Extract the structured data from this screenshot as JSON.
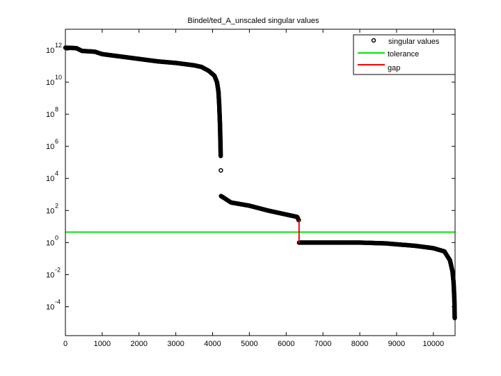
{
  "chart_data": {
    "type": "scatter",
    "title": "Bindel/ted_A_unscaled singular values",
    "xlabel": "",
    "ylabel": "",
    "yscale": "log",
    "xlim": [
      0,
      10590
    ],
    "ylim_exponent": [
      -5.8,
      13.3
    ],
    "xticks": [
      0,
      1000,
      2000,
      3000,
      4000,
      5000,
      6000,
      7000,
      8000,
      9000,
      10000
    ],
    "yticks": [
      {
        "base": "10",
        "exp": "12",
        "value": 1000000000000.0
      },
      {
        "base": "10",
        "exp": "10",
        "value": 10000000000.0
      },
      {
        "base": "10",
        "exp": "8",
        "value": 100000000.0
      },
      {
        "base": "10",
        "exp": "6",
        "value": 1000000.0
      },
      {
        "base": "10",
        "exp": "4",
        "value": 10000.0
      },
      {
        "base": "10",
        "exp": "2",
        "value": 100.0
      },
      {
        "base": "10",
        "exp": "0",
        "value": 1
      },
      {
        "base": "10",
        "exp": "-2",
        "value": 0.01
      },
      {
        "base": "10",
        "exp": "-4",
        "value": 0.0001
      }
    ],
    "grid": false,
    "legend_position": "upper right",
    "legend": [
      {
        "label": "singular values",
        "marker": "o",
        "color": "#000000"
      },
      {
        "label": "tolerance",
        "line": true,
        "color": "#00e600"
      },
      {
        "label": "gap",
        "line": true,
        "color": "#ff0000"
      }
    ],
    "series": [
      {
        "name": "singular values",
        "color": "#000000",
        "points_log10": [
          [
            0,
            12.15
          ],
          [
            300,
            12.12
          ],
          [
            450,
            11.95
          ],
          [
            800,
            11.9
          ],
          [
            1000,
            11.75
          ],
          [
            1500,
            11.6
          ],
          [
            2000,
            11.45
          ],
          [
            2500,
            11.3
          ],
          [
            3000,
            11.2
          ],
          [
            3500,
            11.05
          ],
          [
            3700,
            10.95
          ],
          [
            3900,
            10.7
          ],
          [
            4050,
            10.4
          ],
          [
            4120,
            10.0
          ],
          [
            4160,
            9.4
          ],
          [
            4180,
            8.6
          ],
          [
            4190,
            8.0
          ],
          [
            4195,
            7.7
          ],
          [
            4200,
            7.4
          ],
          [
            4205,
            7.0
          ],
          [
            4210,
            6.5
          ],
          [
            4215,
            6.0
          ],
          [
            4220,
            5.4
          ],
          [
            4225,
            4.5
          ],
          [
            4230,
            2.9
          ],
          [
            4300,
            2.8
          ],
          [
            4500,
            2.5
          ],
          [
            5000,
            2.3
          ],
          [
            5500,
            2.0
          ],
          [
            6000,
            1.75
          ],
          [
            6300,
            1.6
          ],
          [
            6340,
            1.4
          ],
          [
            6350,
            0.0
          ],
          [
            7000,
            0.0
          ],
          [
            8000,
            0.0
          ],
          [
            8700,
            -0.05
          ],
          [
            9500,
            -0.2
          ],
          [
            10000,
            -0.35
          ],
          [
            10300,
            -0.55
          ],
          [
            10450,
            -1.1
          ],
          [
            10520,
            -1.8
          ],
          [
            10550,
            -2.5
          ],
          [
            10560,
            -3.0
          ],
          [
            10570,
            -3.5
          ],
          [
            10575,
            -4.0
          ],
          [
            10580,
            -4.7
          ]
        ]
      },
      {
        "name": "tolerance",
        "color": "#00e600",
        "y": 4.5,
        "y_log10": 0.65
      },
      {
        "name": "gap",
        "color": "#ff0000",
        "x": 6350,
        "y_log10_range": [
          0.0,
          1.4
        ]
      }
    ]
  }
}
